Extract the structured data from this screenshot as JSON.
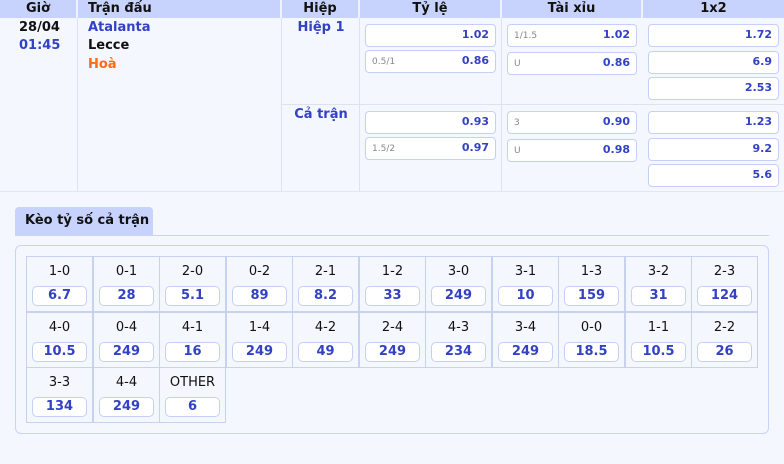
{
  "header": {
    "time": "Giờ",
    "match": "Trận đấu",
    "half": "Hiệp",
    "handicap": "Tỷ lệ",
    "overunder": "Tài xỉu",
    "x12": "1x2"
  },
  "match": {
    "date": "28/04",
    "time": "01:45",
    "home": "Atalanta",
    "away": "Lecce",
    "draw": "Hoà"
  },
  "periods": [
    {
      "name": "Hiệp 1",
      "handicap": [
        {
          "line": "",
          "odds": "1.02"
        },
        {
          "line": "0.5/1",
          "odds": "0.86"
        }
      ],
      "overunder": [
        {
          "line": "1/1.5",
          "odds": "1.02"
        },
        {
          "line": "U",
          "odds": "0.86"
        }
      ],
      "x12": [
        "1.72",
        "6.9",
        "2.53"
      ]
    },
    {
      "name": "Cả trận",
      "handicap": [
        {
          "line": "",
          "odds": "0.93"
        },
        {
          "line": "1.5/2",
          "odds": "0.97"
        }
      ],
      "overunder": [
        {
          "line": "3",
          "odds": "0.90"
        },
        {
          "line": "U",
          "odds": "0.98"
        }
      ],
      "x12": [
        "1.23",
        "9.2",
        "5.6"
      ]
    }
  ],
  "correct_score": {
    "tab_label": "Kèo tỷ số cả trận",
    "items": [
      {
        "score": "1-0",
        "odds": "6.7"
      },
      {
        "score": "0-1",
        "odds": "28"
      },
      {
        "score": "2-0",
        "odds": "5.1"
      },
      {
        "score": "0-2",
        "odds": "89"
      },
      {
        "score": "2-1",
        "odds": "8.2"
      },
      {
        "score": "1-2",
        "odds": "33"
      },
      {
        "score": "3-0",
        "odds": "249"
      },
      {
        "score": "3-1",
        "odds": "10"
      },
      {
        "score": "1-3",
        "odds": "159"
      },
      {
        "score": "3-2",
        "odds": "31"
      },
      {
        "score": "2-3",
        "odds": "124"
      },
      {
        "score": "4-0",
        "odds": "10.5"
      },
      {
        "score": "0-4",
        "odds": "249"
      },
      {
        "score": "4-1",
        "odds": "16"
      },
      {
        "score": "1-4",
        "odds": "249"
      },
      {
        "score": "4-2",
        "odds": "49"
      },
      {
        "score": "2-4",
        "odds": "249"
      },
      {
        "score": "4-3",
        "odds": "234"
      },
      {
        "score": "3-4",
        "odds": "249"
      },
      {
        "score": "0-0",
        "odds": "18.5"
      },
      {
        "score": "1-1",
        "odds": "10.5"
      },
      {
        "score": "2-2",
        "odds": "26"
      },
      {
        "score": "3-3",
        "odds": "134"
      },
      {
        "score": "4-4",
        "odds": "249"
      },
      {
        "score": "OTHER",
        "odds": "6"
      }
    ]
  }
}
